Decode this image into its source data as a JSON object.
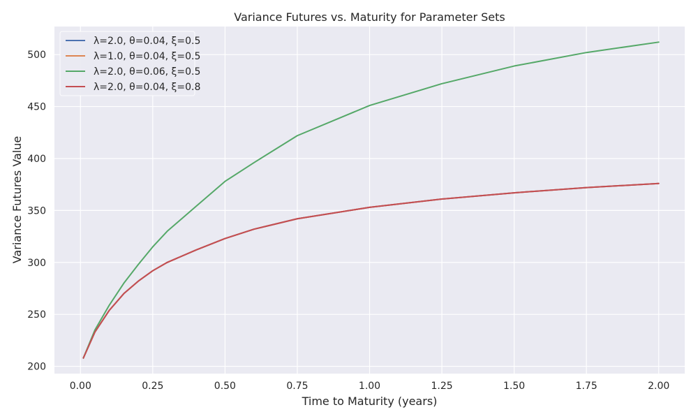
{
  "chart_data": {
    "type": "line",
    "title": "Variance Futures vs. Maturity for Parameter Sets",
    "xlabel": "Time to Maturity (years)",
    "ylabel": "Variance Futures Value",
    "xlim": [
      -0.09,
      2.09
    ],
    "ylim": [
      193,
      527
    ],
    "xticks": [
      0.0,
      0.25,
      0.5,
      0.75,
      1.0,
      1.25,
      1.5,
      1.75,
      2.0
    ],
    "xtick_labels": [
      "0.00",
      "0.25",
      "0.50",
      "0.75",
      "1.00",
      "1.25",
      "1.50",
      "1.75",
      "2.00"
    ],
    "yticks": [
      200,
      250,
      300,
      350,
      400,
      450,
      500
    ],
    "ytick_labels": [
      "200",
      "250",
      "300",
      "350",
      "400",
      "450",
      "500"
    ],
    "grid": true,
    "legend_position": "top-left",
    "background": "#eaeaf2",
    "x": [
      0.01,
      0.05,
      0.1,
      0.15,
      0.2,
      0.25,
      0.3,
      0.4,
      0.5,
      0.6,
      0.75,
      1.0,
      1.25,
      1.5,
      1.75,
      2.0
    ],
    "series": [
      {
        "name": "λ=2.0, θ=0.04, ξ=0.5",
        "color": "#4c72b0",
        "values": [
          208,
          233,
          254,
          270,
          282,
          292,
          300,
          312,
          323,
          332,
          342,
          353,
          361,
          367,
          372,
          376
        ]
      },
      {
        "name": "λ=1.0, θ=0.04, ξ=0.5",
        "color": "#dd8452",
        "values": [
          208,
          233,
          254,
          270,
          282,
          292,
          300,
          312,
          323,
          332,
          342,
          353,
          361,
          367,
          372,
          376
        ]
      },
      {
        "name": "λ=2.0, θ=0.06, ξ=0.5",
        "color": "#55a868",
        "values": [
          208,
          235,
          259,
          280,
          298,
          315,
          330,
          354,
          378,
          396,
          422,
          451,
          472,
          489,
          502,
          512
        ]
      },
      {
        "name": "λ=2.0, θ=0.04, ξ=0.8",
        "color": "#c44e52",
        "values": [
          208,
          233,
          254,
          270,
          282,
          292,
          300,
          312,
          323,
          332,
          342,
          353,
          361,
          367,
          372,
          376
        ]
      }
    ]
  }
}
